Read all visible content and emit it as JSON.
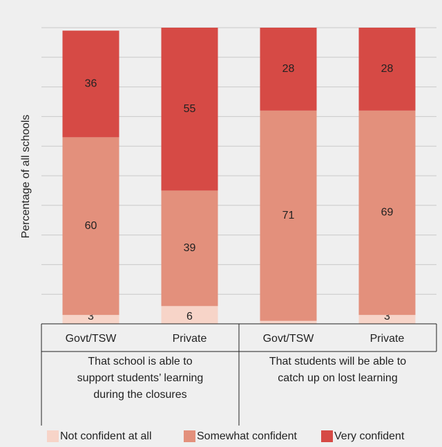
{
  "chart_data": {
    "type": "stacked_bar",
    "y_label": "Percentage of all schools",
    "categories": [
      "Govt/TSW",
      "Private",
      "Govt/TSW",
      "Private"
    ],
    "groups": [
      {
        "lines": [
          "That school is able to",
          "support students’ learning",
          "during the closures"
        ]
      },
      {
        "lines": [
          "That students will be able to",
          "catch up on lost learning"
        ]
      }
    ],
    "series": [
      {
        "name": "Not confident at all",
        "color": "#f7d4c8",
        "values": [
          3,
          6,
          1,
          3
        ]
      },
      {
        "name": "Somewhat confident",
        "color": "#e3907c",
        "values": [
          60,
          39,
          71,
          69
        ]
      },
      {
        "name": "Very confident",
        "color": "#d64a45",
        "values": [
          36,
          55,
          28,
          28
        ]
      }
    ],
    "ylim": [
      0,
      100
    ],
    "yticks": [
      0,
      10,
      20,
      30,
      40,
      50,
      60,
      70,
      80,
      90,
      100
    ],
    "grid": true
  }
}
